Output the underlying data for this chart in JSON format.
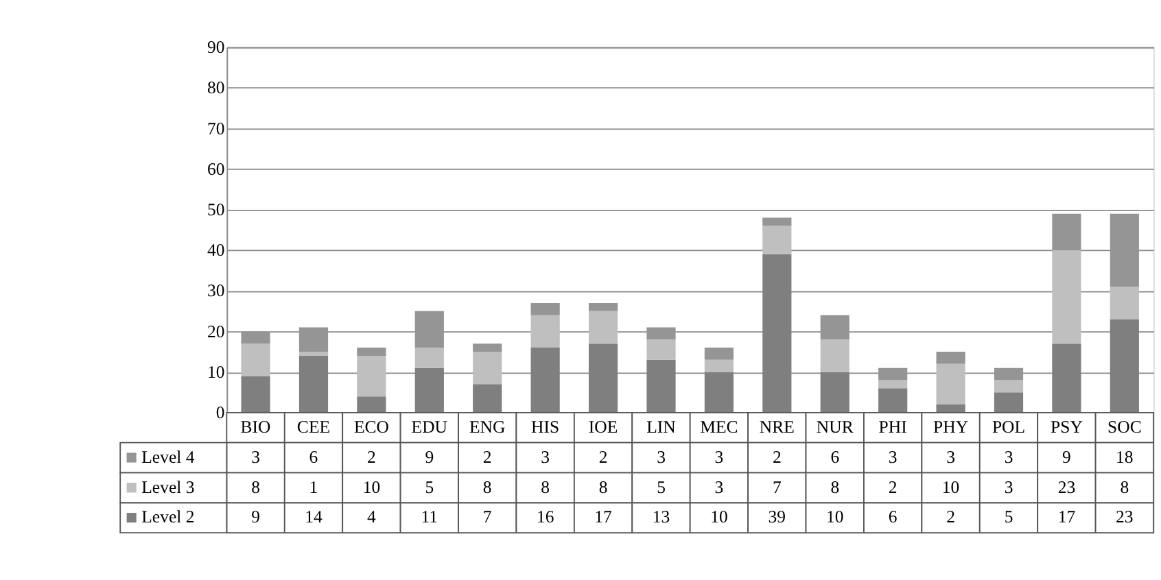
{
  "chart_data": {
    "type": "bar",
    "stacked": true,
    "categories": [
      "BIO",
      "CEE",
      "ECO",
      "EDU",
      "ENG",
      "HIS",
      "IOE",
      "LIN",
      "MEC",
      "NRE",
      "NUR",
      "PHI",
      "PHY",
      "POL",
      "PSY",
      "SOC"
    ],
    "series": [
      {
        "name": "Level 2",
        "color": "#7f7f7f",
        "values": [
          9,
          14,
          4,
          11,
          7,
          16,
          17,
          13,
          10,
          39,
          10,
          6,
          2,
          5,
          17,
          23
        ]
      },
      {
        "name": "Level 3",
        "color": "#bfbfbf",
        "values": [
          8,
          1,
          10,
          5,
          8,
          8,
          8,
          5,
          3,
          7,
          8,
          2,
          10,
          3,
          23,
          8
        ]
      },
      {
        "name": "Level 4",
        "color": "#959595",
        "values": [
          3,
          6,
          2,
          9,
          2,
          3,
          2,
          3,
          3,
          2,
          6,
          3,
          3,
          3,
          9,
          18
        ]
      }
    ],
    "ylim": [
      0,
      90
    ],
    "yticks": [
      0,
      10,
      20,
      30,
      40,
      50,
      60,
      70,
      80,
      90
    ],
    "grid": "y",
    "data_labels": true,
    "legend": "bottom"
  }
}
